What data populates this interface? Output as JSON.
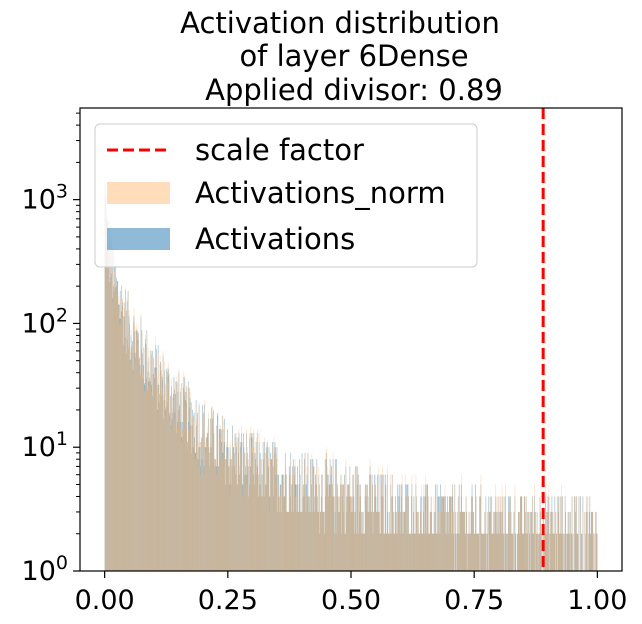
{
  "chart_data": {
    "type": "histogram",
    "title_lines": [
      "Activation distribution",
      "of layer 6Dense",
      "Applied divisor: 0.89"
    ],
    "xlabel": "",
    "ylabel": "",
    "x_range": [
      0.0,
      1.0
    ],
    "xlim": [
      -0.05,
      1.05
    ],
    "y_scale": "log",
    "ylim": [
      1,
      5500
    ],
    "x_ticks": [
      {
        "value": 0.0,
        "label": "0.00"
      },
      {
        "value": 0.25,
        "label": "0.25"
      },
      {
        "value": 0.5,
        "label": "0.50"
      },
      {
        "value": 0.75,
        "label": "0.75"
      },
      {
        "value": 1.0,
        "label": "1.00"
      }
    ],
    "y_ticks": [
      {
        "value": 1,
        "base": "10",
        "exp": "0"
      },
      {
        "value": 10,
        "base": "10",
        "exp": "1"
      },
      {
        "value": 100,
        "base": "10",
        "exp": "2"
      },
      {
        "value": 1000,
        "base": "10",
        "exp": "3"
      }
    ],
    "n_bins": 1000,
    "series": [
      {
        "name": "Activations_norm",
        "color": "#ffbb78",
        "opacity": 0.5
      },
      {
        "name": "Activations",
        "color": "#1f77b4",
        "opacity": 0.5
      }
    ],
    "shape_profile": [
      {
        "x": 0.0,
        "y": 1200
      },
      {
        "x": 0.005,
        "y": 500
      },
      {
        "x": 0.02,
        "y": 200
      },
      {
        "x": 0.05,
        "y": 90
      },
      {
        "x": 0.1,
        "y": 40
      },
      {
        "x": 0.15,
        "y": 22
      },
      {
        "x": 0.2,
        "y": 13
      },
      {
        "x": 0.25,
        "y": 9
      },
      {
        "x": 0.3,
        "y": 7
      },
      {
        "x": 0.4,
        "y": 5
      },
      {
        "x": 0.5,
        "y": 4
      },
      {
        "x": 0.6,
        "y": 3
      },
      {
        "x": 0.75,
        "y": 2.5
      },
      {
        "x": 1.0,
        "y": 2.2
      }
    ],
    "vline": {
      "name": "scale factor",
      "x": 0.89,
      "color": "#ff0000",
      "style": "dashed"
    },
    "legend": {
      "position": "upper-left",
      "entries": [
        {
          "label": "scale factor",
          "kind": "line",
          "color": "#ff0000"
        },
        {
          "label": "Activations_norm",
          "kind": "patch",
          "color": "#ffbb78"
        },
        {
          "label": "Activations",
          "kind": "patch",
          "color": "#1f77b4"
        }
      ]
    }
  }
}
